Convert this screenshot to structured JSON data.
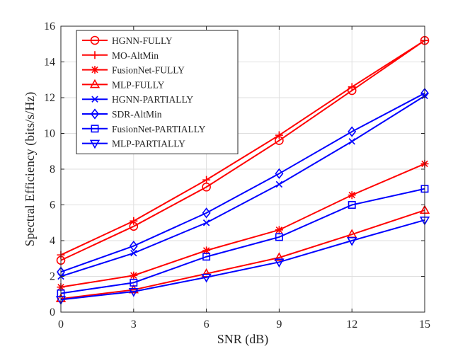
{
  "chart_data": {
    "type": "line",
    "title": "",
    "xlabel": "SNR (dB)",
    "ylabel": "Spectral Efficiency (bits/s/Hz)",
    "x": [
      0,
      3,
      6,
      9,
      12,
      15
    ],
    "xlim": [
      0,
      15
    ],
    "ylim": [
      0,
      16
    ],
    "xticks": [
      0,
      3,
      6,
      9,
      12,
      15
    ],
    "yticks": [
      0,
      2,
      4,
      6,
      8,
      10,
      12,
      14,
      16
    ],
    "grid": true,
    "legend_position": "top-left",
    "series": [
      {
        "name": "HGNN-FULLY",
        "color": "#ff0000",
        "marker": "circle",
        "values": [
          2.9,
          4.8,
          7.0,
          9.6,
          12.4,
          15.2
        ]
      },
      {
        "name": "MO-AltMin",
        "color": "#ff0000",
        "marker": "plus",
        "values": [
          3.2,
          5.1,
          7.4,
          9.9,
          12.6,
          15.2
        ]
      },
      {
        "name": "FusionNet-FULLY",
        "color": "#ff0000",
        "marker": "asterisk",
        "values": [
          1.4,
          2.05,
          3.45,
          4.6,
          6.55,
          8.3
        ]
      },
      {
        "name": "MLP-FULLY",
        "color": "#ff0000",
        "marker": "triangle-up",
        "values": [
          0.75,
          1.25,
          2.15,
          3.05,
          4.35,
          5.7
        ]
      },
      {
        "name": "HGNN-PARTIALLY",
        "color": "#0000ff",
        "marker": "x",
        "values": [
          2.0,
          3.3,
          5.0,
          7.15,
          9.55,
          12.1
        ]
      },
      {
        "name": "SDR-AltMin",
        "color": "#0000ff",
        "marker": "diamond",
        "values": [
          2.25,
          3.7,
          5.55,
          7.75,
          10.1,
          12.25
        ]
      },
      {
        "name": "FusionNet-PARTIALLY",
        "color": "#0000ff",
        "marker": "square",
        "values": [
          1.05,
          1.65,
          3.1,
          4.2,
          6.0,
          6.9
        ]
      },
      {
        "name": "MLP-PARTIALLY",
        "color": "#0000ff",
        "marker": "triangle-down",
        "values": [
          0.7,
          1.15,
          1.95,
          2.8,
          4.0,
          5.15
        ]
      }
    ]
  }
}
